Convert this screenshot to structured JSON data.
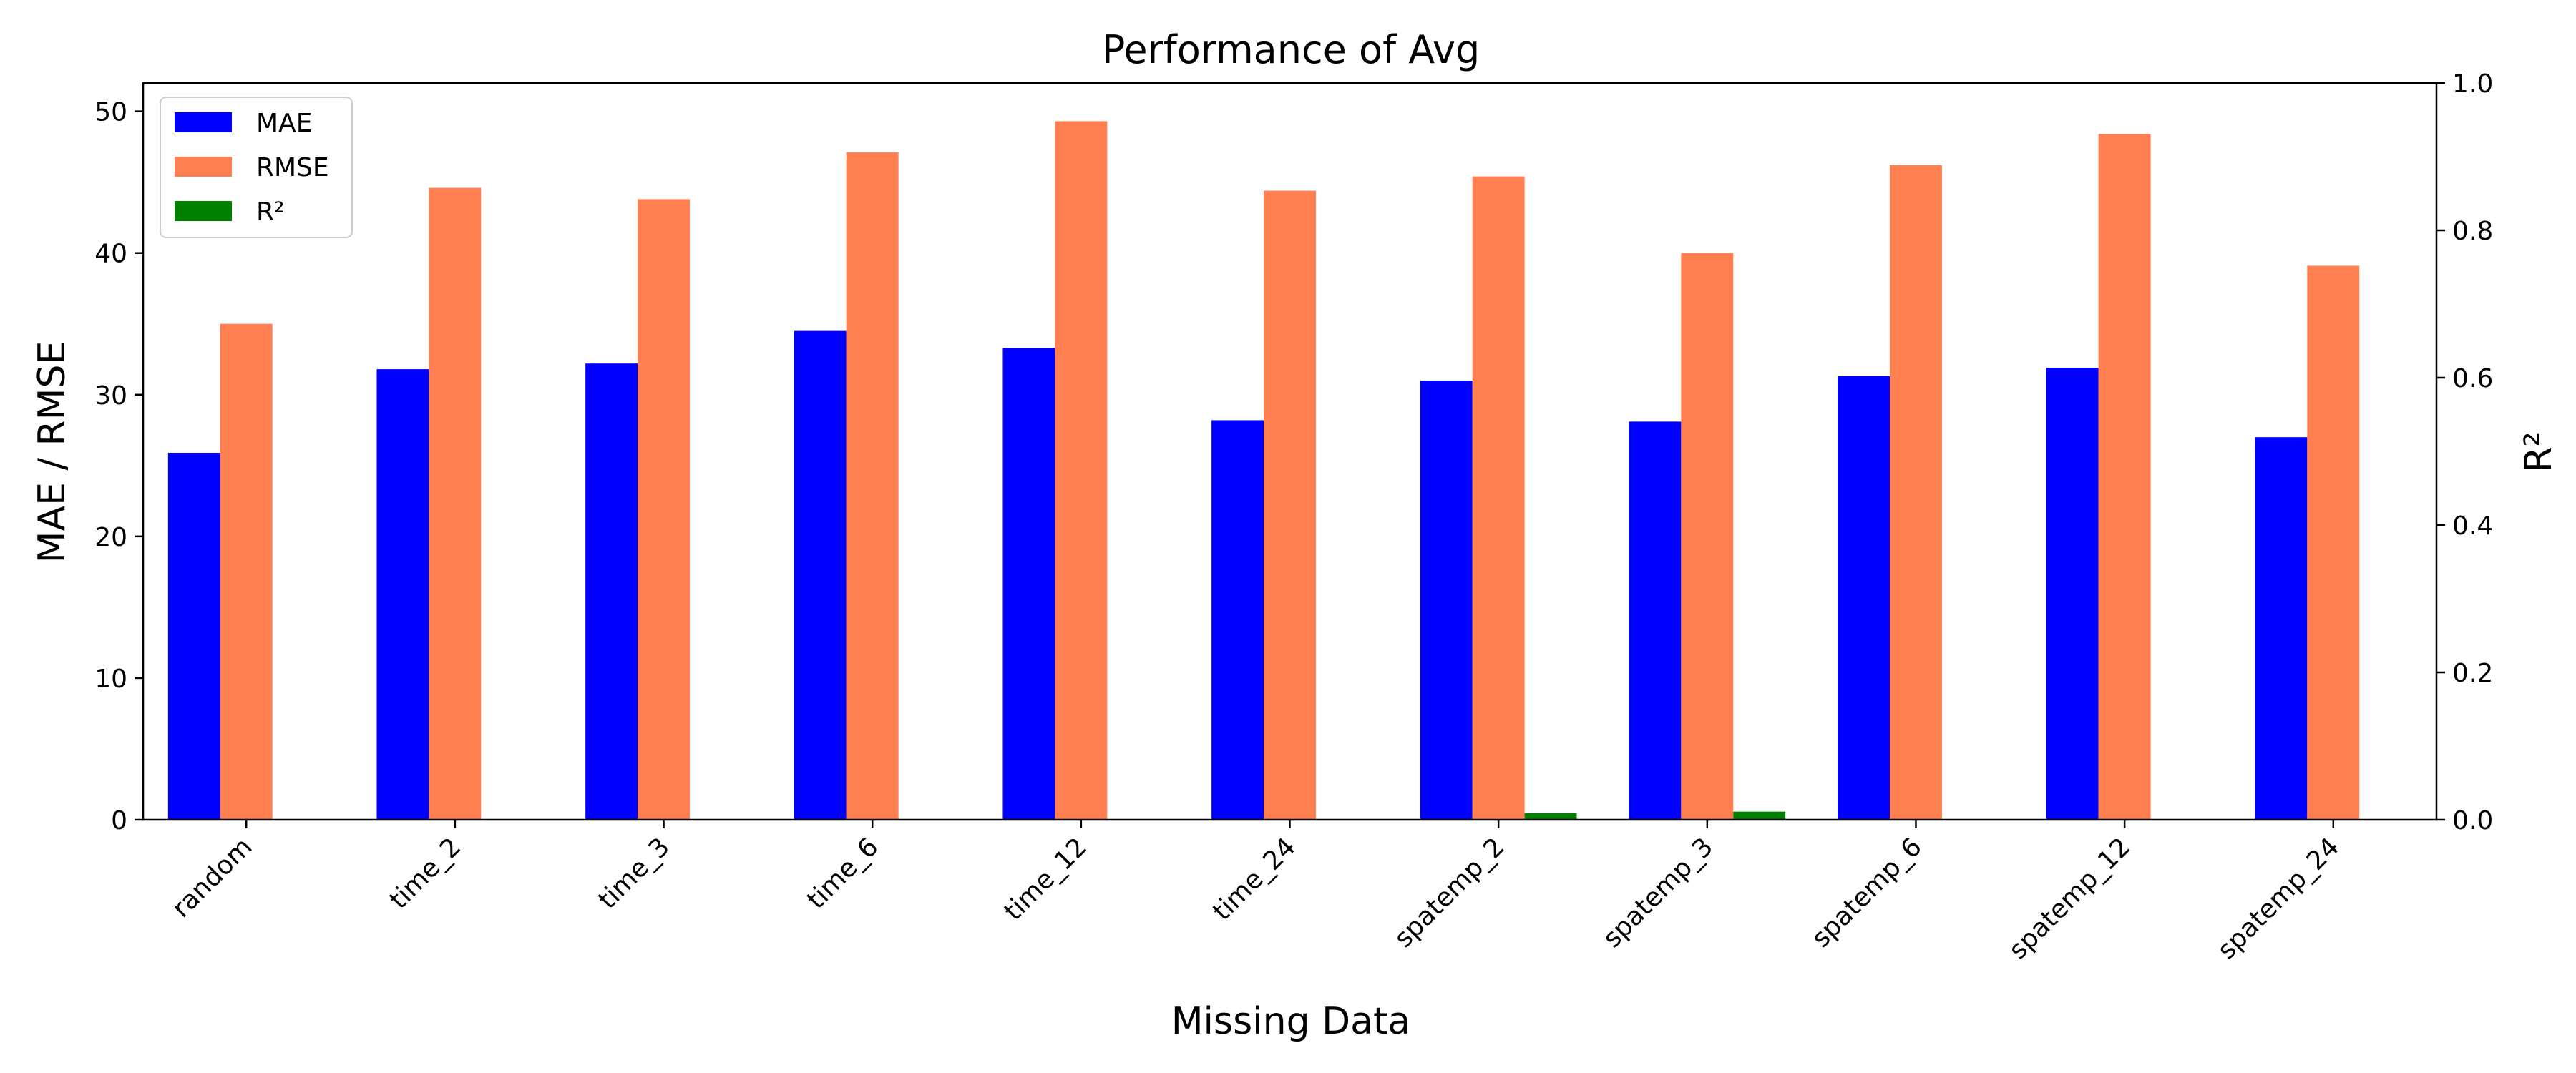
{
  "chart_data": {
    "type": "bar",
    "title": "Performance of Avg",
    "xlabel": "Missing Data",
    "ylabel": "MAE / RMSE",
    "y2label": "R²",
    "ylim": [
      0,
      52
    ],
    "y2lim": [
      0,
      1.0
    ],
    "yticks": [
      0,
      10,
      20,
      30,
      40,
      50
    ],
    "y2ticks": [
      "0.0",
      "0.2",
      "0.4",
      "0.6",
      "0.8",
      "1.0"
    ],
    "grid": false,
    "legend_position": "top-left",
    "categories": [
      "random",
      "time_2",
      "time_3",
      "time_6",
      "time_12",
      "time_24",
      "spatemp_2",
      "spatemp_3",
      "spatemp_6",
      "spatemp_12",
      "spatemp_24"
    ],
    "series": [
      {
        "name": "MAE",
        "axis": "left",
        "color": "#0000ff",
        "values": [
          25.9,
          31.8,
          32.2,
          34.5,
          33.3,
          28.2,
          31.0,
          28.1,
          31.3,
          31.9,
          27.0
        ]
      },
      {
        "name": "RMSE",
        "axis": "left",
        "color": "#ff7f50",
        "values": [
          35.0,
          44.6,
          43.8,
          47.1,
          49.3,
          44.4,
          45.4,
          40.0,
          46.2,
          48.4,
          39.1
        ]
      },
      {
        "name": "R²",
        "axis": "right",
        "color": "#008000",
        "values": [
          0.0,
          0.0,
          0.0,
          0.0,
          0.0,
          0.0,
          0.009,
          0.011,
          0.0,
          0.0,
          0.0
        ]
      }
    ]
  }
}
